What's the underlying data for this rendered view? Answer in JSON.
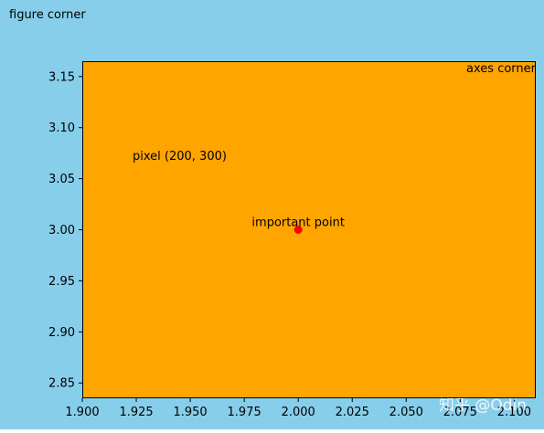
{
  "colors": {
    "figure_bg": "#87CEEB",
    "axes_bg": "#FFA500",
    "point": "#FF0000",
    "text": "#000000",
    "watermark": "#FFFFFF"
  },
  "annotations": {
    "figure_corner": "figure corner",
    "axes_corner": "axes corner",
    "pixel_label": "pixel (200, 300)"
  },
  "watermark": "知乎 @Odin",
  "chart_data": {
    "type": "scatter",
    "xlim": [
      1.9,
      2.11
    ],
    "ylim": [
      2.835,
      3.165
    ],
    "xticks": [
      1.9,
      1.925,
      1.95,
      1.975,
      2.0,
      2.025,
      2.05,
      2.075,
      2.1
    ],
    "xtick_labels": [
      "1.900",
      "1.925",
      "1.950",
      "1.975",
      "2.000",
      "2.025",
      "2.050",
      "2.075",
      "2.100"
    ],
    "yticks": [
      2.85,
      2.9,
      2.95,
      3.0,
      3.05,
      3.1,
      3.15
    ],
    "ytick_labels": [
      "2.85",
      "2.90",
      "2.95",
      "3.00",
      "3.05",
      "3.10",
      "3.15"
    ],
    "points": [
      {
        "x": 2.0,
        "y": 3.0,
        "label": "important point"
      }
    ],
    "grid": false
  }
}
